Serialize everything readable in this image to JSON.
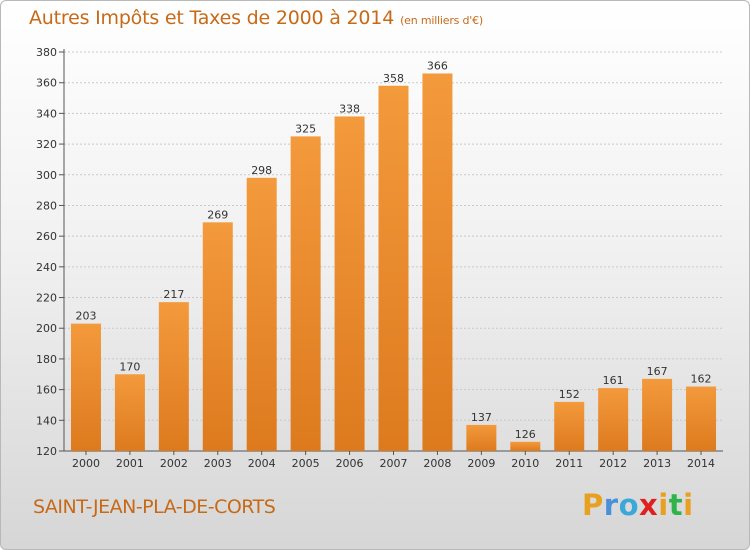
{
  "title": "Autres Impôts et Taxes de 2000 à 2014",
  "unit_note": "(en milliers d'€)",
  "commune": "SAINT-JEAN-PLA-DE-CORTS",
  "logo": {
    "letters": [
      "P",
      "r",
      "o",
      "x",
      "i",
      "t",
      "i"
    ],
    "colors": [
      "#e8a020",
      "#4a90d9",
      "#3aa8d8",
      "#e02020",
      "#e8a020",
      "#2fb34a",
      "#e8a020"
    ]
  },
  "colors": {
    "bar": "#f39a3c",
    "bar_dark": "#dd7a1e",
    "title": "#c76a18",
    "text": "#333333"
  },
  "chart_data": {
    "type": "bar",
    "categories": [
      "2000",
      "2001",
      "2002",
      "2003",
      "2004",
      "2005",
      "2006",
      "2007",
      "2008",
      "2009",
      "2010",
      "2011",
      "2012",
      "2013",
      "2014"
    ],
    "values": [
      203,
      170,
      217,
      269,
      298,
      325,
      338,
      358,
      366,
      137,
      126,
      152,
      161,
      167,
      162
    ],
    "ylim": [
      120,
      380
    ],
    "yticks": [
      120,
      140,
      160,
      180,
      200,
      220,
      240,
      260,
      280,
      300,
      320,
      340,
      360,
      380
    ],
    "grid": true
  }
}
